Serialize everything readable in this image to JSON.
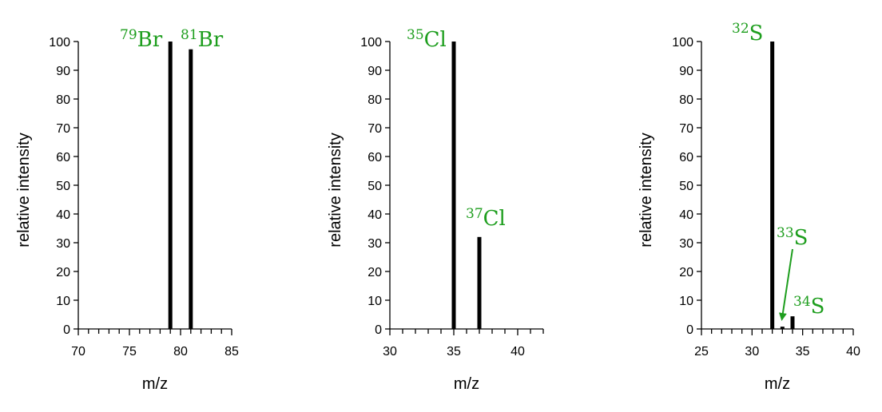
{
  "colors": {
    "bar": "#000000",
    "label": "#1e9e1e",
    "axis": "#000000"
  },
  "chart_data": [
    {
      "type": "bar",
      "xlabel": "m/z",
      "ylabel": "relative intensity",
      "xlim": [
        70,
        85
      ],
      "ylim": [
        0,
        100
      ],
      "x_major_ticks": [
        70,
        75,
        80,
        85
      ],
      "x_minor_step": 1,
      "y_ticks": [
        0,
        10,
        20,
        30,
        40,
        50,
        60,
        70,
        80,
        90,
        100
      ],
      "bars": [
        {
          "x": 79,
          "y": 100
        },
        {
          "x": 81,
          "y": 97.3
        }
      ],
      "annotations": [
        {
          "mass": "79",
          "symbol": "Br"
        },
        {
          "mass": "81",
          "symbol": "Br"
        }
      ]
    },
    {
      "type": "bar",
      "xlabel": "m/z",
      "ylabel": "relative intensity",
      "xlim": [
        30,
        42
      ],
      "ylim": [
        0,
        100
      ],
      "x_major_ticks": [
        30,
        35,
        40
      ],
      "x_minor_step": 1,
      "y_ticks": [
        0,
        10,
        20,
        30,
        40,
        50,
        60,
        70,
        80,
        90,
        100
      ],
      "bars": [
        {
          "x": 35,
          "y": 100
        },
        {
          "x": 37,
          "y": 32
        }
      ],
      "annotations": [
        {
          "mass": "35",
          "symbol": "Cl"
        },
        {
          "mass": "37",
          "symbol": "Cl"
        }
      ]
    },
    {
      "type": "bar",
      "xlabel": "m/z",
      "ylabel": "relative intensity",
      "xlim": [
        25,
        40
      ],
      "ylim": [
        0,
        100
      ],
      "x_major_ticks": [
        25,
        30,
        35,
        40
      ],
      "x_minor_step": 1,
      "y_ticks": [
        0,
        10,
        20,
        30,
        40,
        50,
        60,
        70,
        80,
        90,
        100
      ],
      "bars": [
        {
          "x": 32,
          "y": 100
        },
        {
          "x": 33,
          "y": 0.8
        },
        {
          "x": 34,
          "y": 4.4
        }
      ],
      "annotations": [
        {
          "mass": "32",
          "symbol": "S"
        },
        {
          "mass": "33",
          "symbol": "S"
        },
        {
          "mass": "34",
          "symbol": "S"
        }
      ]
    }
  ]
}
